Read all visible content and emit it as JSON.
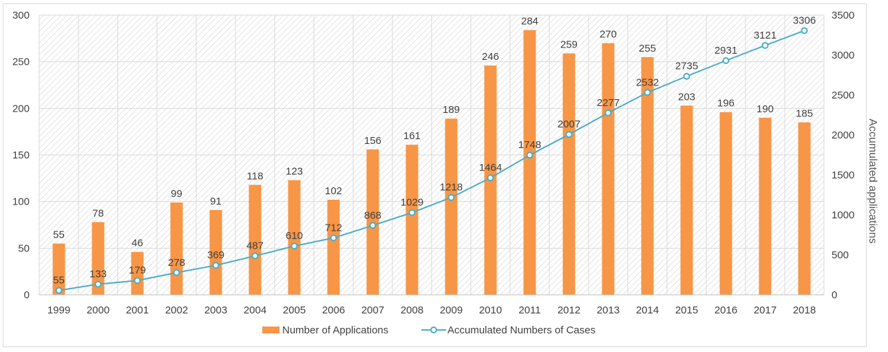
{
  "chart_data": {
    "type": "bar",
    "categories": [
      "1999",
      "2000",
      "2001",
      "2002",
      "2003",
      "2004",
      "2005",
      "2006",
      "2007",
      "2008",
      "2009",
      "2010",
      "2011",
      "2012",
      "2013",
      "2014",
      "2015",
      "2016",
      "2017",
      "2018"
    ],
    "series": [
      {
        "name": "Number of Applications",
        "type": "bar",
        "axis": "left",
        "color": "#f79646",
        "values": [
          55,
          78,
          46,
          99,
          91,
          118,
          123,
          102,
          156,
          161,
          189,
          246,
          284,
          259,
          270,
          255,
          203,
          196,
          190,
          185
        ]
      },
      {
        "name": "Accumulated Numbers of Cases",
        "type": "line",
        "axis": "right",
        "color": "#4bacc6",
        "values": [
          55,
          133,
          179,
          278,
          369,
          487,
          610,
          712,
          868,
          1029,
          1218,
          1464,
          1748,
          2007,
          2277,
          2532,
          2735,
          2931,
          3121,
          3306
        ]
      }
    ],
    "ylim_left": [
      0,
      300
    ],
    "yticks_left": [
      0,
      50,
      100,
      150,
      200,
      250,
      300
    ],
    "ylim_right": [
      0,
      3500
    ],
    "yticks_right": [
      0,
      500,
      1000,
      1500,
      2000,
      2500,
      3000,
      3500
    ],
    "ylabel_right": "Accumulated applications",
    "ylabel_left": "",
    "xlabel": "",
    "title": "",
    "grid": true,
    "legend_position": "bottom",
    "data_labels": true
  }
}
